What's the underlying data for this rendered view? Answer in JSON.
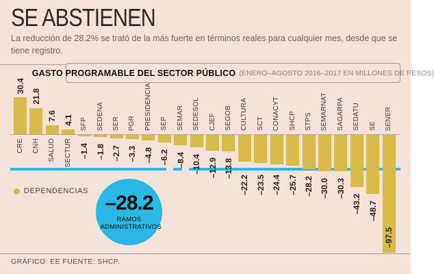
{
  "page": {
    "title": "SE ABSTIENEN",
    "subtitle": "La reducción de 28.2% se trató de la más fuerte en términos reales para cualquier mes, desde que se tiene registro.",
    "footer": "GRÁFICO: EE  FUENTE: SHCP."
  },
  "chart_header": {
    "title": "GASTO PROGRAMABLE DEL SECTOR PÚBLICO",
    "subtitle": "(ENERO–AGOSTO 2016–2017 EN MILLONES DE PESOS)"
  },
  "legend": {
    "label": "DEPENDENCIAS"
  },
  "annotation": {
    "value": "–28.2",
    "label": "RAMOS ADMINISTRATIVOS"
  },
  "colors": {
    "background": "#f5e2d9",
    "bar": "#d8bb49",
    "accent": "#2ab9e7"
  },
  "chart_data": {
    "type": "bar",
    "title": "GASTO PROGRAMABLE DEL SECTOR PÚBLICO (ENERO–AGOSTO 2016–2017 EN MILLONES DE PESOS)",
    "categories": [
      "CRE",
      "CNH",
      "SALUD",
      "SECTUR",
      "SFP",
      "SEDENA",
      "SER",
      "PGR",
      "PRESIDENCIA",
      "SEP",
      "SEMAR",
      "SEDESOL",
      "CJEF",
      "SEGOB",
      "CULTURA",
      "SCT",
      "CONACYT",
      "SHCP",
      "STPS",
      "SEMARNAT",
      "SAGARPA",
      "SEDATU",
      "SE",
      "SENER"
    ],
    "values": [
      30.4,
      21.8,
      7.6,
      4.1,
      -1.4,
      -1.8,
      -2.7,
      -3.3,
      -4.8,
      -6.2,
      -8.4,
      -10.4,
      -12.9,
      -13.8,
      -22.2,
      -23.5,
      -24.4,
      -25.7,
      -28.2,
      -30.0,
      -30.3,
      -43.2,
      -48.7,
      -97.5
    ],
    "series_name": "DEPENDENCIAS",
    "reference_line": -28.2,
    "reference_line_label": "RAMOS ADMINISTRATIVOS",
    "ylim": [
      -100,
      35
    ],
    "grid": false,
    "legend_position": "left-middle"
  }
}
